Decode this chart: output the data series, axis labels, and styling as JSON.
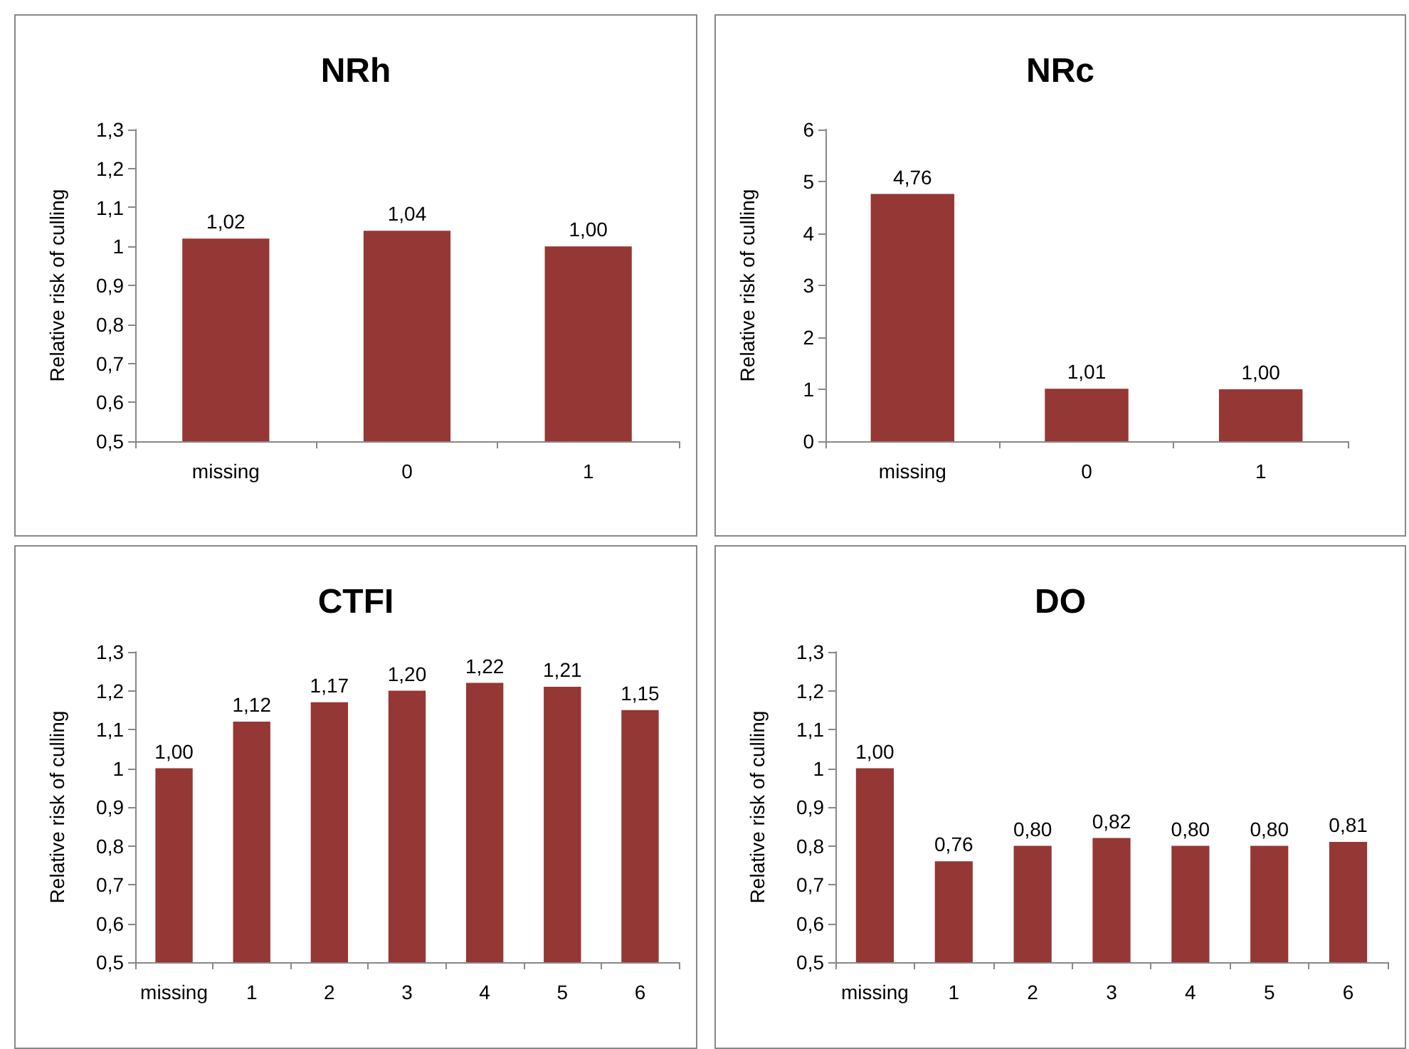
{
  "chart_data": [
    {
      "type": "bar",
      "title": "NRh",
      "ylabel": "Relative risk of culling",
      "categories": [
        "missing",
        "0",
        "1"
      ],
      "values": [
        1.02,
        1.04,
        1.0
      ],
      "value_labels": [
        "1,02",
        "1,04",
        "1,00"
      ],
      "color": "#953735",
      "ylim": [
        0.5,
        1.3
      ],
      "yticks": [
        {
          "value": 0.5,
          "label": "0,5"
        },
        {
          "value": 0.6,
          "label": "0,6"
        },
        {
          "value": 0.7,
          "label": "0,7"
        },
        {
          "value": 0.8,
          "label": "0,8"
        },
        {
          "value": 0.9,
          "label": "0,9"
        },
        1,
        {
          "value": 1.1,
          "label": "1,1"
        },
        {
          "value": 1.2,
          "label": "1,2"
        },
        {
          "value": 1.3,
          "label": "1,3"
        }
      ]
    },
    {
      "type": "bar",
      "title": "NRc",
      "ylabel": "Relative risk of culling",
      "categories": [
        "missing",
        "0",
        "1"
      ],
      "values": [
        4.76,
        1.01,
        1.0
      ],
      "value_labels": [
        "4,76",
        "1,01",
        "1,00"
      ],
      "color": "#953735",
      "ylim": [
        0,
        6
      ],
      "yticks": [
        0,
        1,
        2,
        3,
        4,
        5,
        6
      ]
    },
    {
      "type": "bar",
      "title": "CTFI",
      "ylabel": "Relative risk of culling",
      "categories": [
        "missing",
        "1",
        "2",
        "3",
        "4",
        "5",
        "6"
      ],
      "values": [
        1.0,
        1.12,
        1.17,
        1.2,
        1.22,
        1.21,
        1.15
      ],
      "value_labels": [
        "1,00",
        "1,12",
        "1,17",
        "1,20",
        "1,22",
        "1,21",
        "1,15"
      ],
      "color": "#953735",
      "ylim": [
        0.5,
        1.3
      ],
      "yticks": [
        {
          "value": 0.5,
          "label": "0,5"
        },
        {
          "value": 0.6,
          "label": "0,6"
        },
        {
          "value": 0.7,
          "label": "0,7"
        },
        {
          "value": 0.8,
          "label": "0,8"
        },
        {
          "value": 0.9,
          "label": "0,9"
        },
        1,
        {
          "value": 1.1,
          "label": "1,1"
        },
        {
          "value": 1.2,
          "label": "1,2"
        },
        {
          "value": 1.3,
          "label": "1,3"
        }
      ]
    },
    {
      "type": "bar",
      "title": "DO",
      "ylabel": "Relative risk of culling",
      "categories": [
        "missing",
        "1",
        "2",
        "3",
        "4",
        "5",
        "6"
      ],
      "values": [
        1.0,
        0.76,
        0.8,
        0.82,
        0.8,
        0.8,
        0.81
      ],
      "value_labels": [
        "1,00",
        "0,76",
        "0,80",
        "0,82",
        "0,80",
        "0,80",
        "0,81"
      ],
      "color": "#953735",
      "ylim": [
        0.5,
        1.3
      ],
      "yticks": [
        {
          "value": 0.5,
          "label": "0,5"
        },
        {
          "value": 0.6,
          "label": "0,6"
        },
        {
          "value": 0.7,
          "label": "0,7"
        },
        {
          "value": 0.8,
          "label": "0,8"
        },
        {
          "value": 0.9,
          "label": "0,9"
        },
        1,
        {
          "value": 1.1,
          "label": "1,1"
        },
        {
          "value": 1.2,
          "label": "1,2"
        },
        {
          "value": 1.3,
          "label": "1,3"
        }
      ]
    }
  ]
}
